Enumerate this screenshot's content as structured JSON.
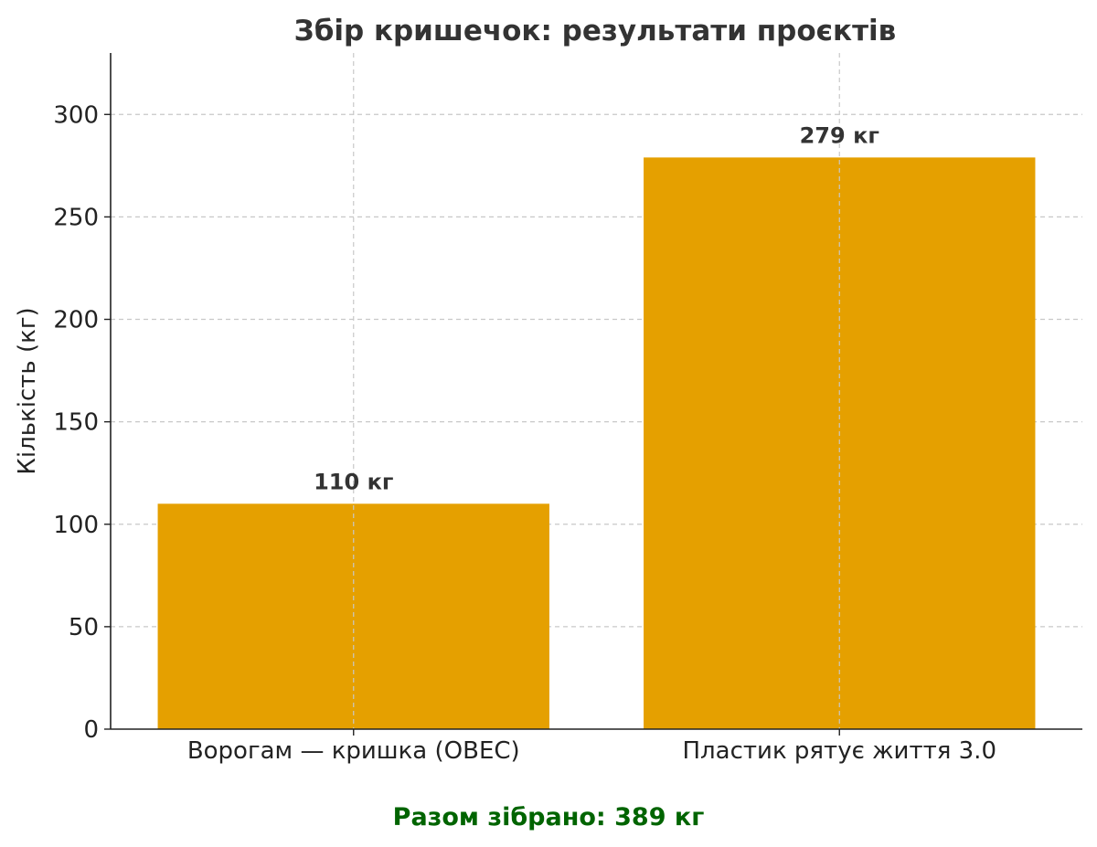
{
  "chart_data": {
    "type": "bar",
    "title": "Збір кришечок: результати проєктів",
    "xlabel": "",
    "ylabel": "Кількість (кг)",
    "categories": [
      "Ворогам — кришка (OBEC)",
      "Пластик рятує життя 3.0"
    ],
    "values": [
      110,
      279
    ],
    "data_labels": [
      "110 кг",
      "279 кг"
    ],
    "unit": "кг",
    "ylim": [
      0,
      330
    ],
    "yticks": [
      0,
      50,
      100,
      150,
      200,
      250,
      300
    ],
    "grid": true,
    "bar_color": "#e5a000"
  },
  "footer": {
    "total_text": "Разом зібрано: 389 кг",
    "total_color": "#006400"
  }
}
